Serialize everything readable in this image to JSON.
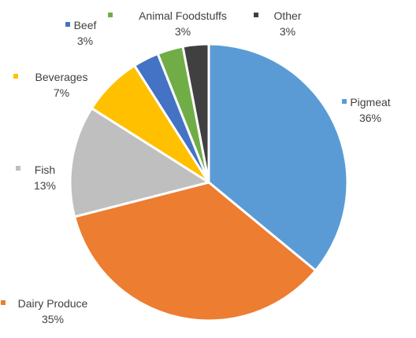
{
  "chart_data": {
    "type": "pie",
    "title": "",
    "slices": [
      {
        "label": "Pigmeat",
        "value": 36,
        "percent_label": "36%",
        "color": "#5B9BD5"
      },
      {
        "label": "Dairy Produce",
        "value": 35,
        "percent_label": "35%",
        "color": "#ED7D31"
      },
      {
        "label": "Fish",
        "value": 13,
        "percent_label": "13%",
        "color": "#BFBFBF"
      },
      {
        "label": "Beverages",
        "value": 7,
        "percent_label": "7%",
        "color": "#FFC000"
      },
      {
        "label": "Beef",
        "value": 3,
        "percent_label": "3%",
        "color": "#4472C4"
      },
      {
        "label": "Animal Foodstuffs",
        "value": 3,
        "percent_label": "3%",
        "color": "#70AD47"
      },
      {
        "label": "Other",
        "value": 3,
        "percent_label": "3%",
        "color": "#404040"
      }
    ]
  }
}
